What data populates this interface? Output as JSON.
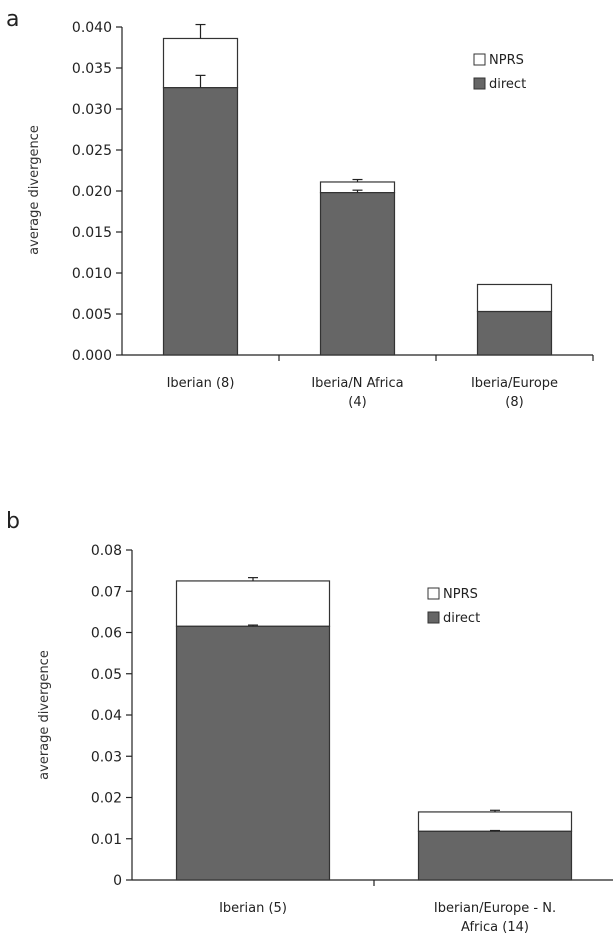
{
  "chart_data": [
    {
      "panel": "a",
      "type": "bar",
      "stacked": true,
      "ylabel": "average divergence",
      "ylim": [
        0,
        0.04
      ],
      "yticks": [
        "0.000",
        "0.005",
        "0.010",
        "0.015",
        "0.020",
        "0.025",
        "0.030",
        "0.035",
        "0.040"
      ],
      "categories": [
        [
          "Iberian (8)"
        ],
        [
          "Iberia/N Africa",
          "(4)"
        ],
        [
          "Iberia/Europe",
          "(8)"
        ]
      ],
      "series": [
        {
          "name": "direct",
          "color": "#666666",
          "values": [
            0.0326,
            0.0198,
            0.0053
          ],
          "error": [
            0.0015,
            0.0003,
            0
          ]
        },
        {
          "name": "NPRS",
          "color": "#ffffff",
          "values": [
            0.006,
            0.0013,
            0.0033
          ],
          "error": [
            0.0017,
            0.0003,
            0
          ]
        }
      ],
      "legend": {
        "position": "top-right",
        "entries": [
          "NPRS",
          "direct"
        ]
      }
    },
    {
      "panel": "b",
      "type": "bar",
      "stacked": true,
      "ylabel": "average divergence",
      "ylim": [
        0,
        0.08
      ],
      "yticks": [
        "0",
        "0.01",
        "0.02",
        "0.03",
        "0.04",
        "0.05",
        "0.06",
        "0.07",
        "0.08"
      ],
      "categories": [
        [
          "Iberian (5)"
        ],
        [
          "Iberian/Europe - N.",
          "Africa (14)"
        ]
      ],
      "series": [
        {
          "name": "direct",
          "color": "#666666",
          "values": [
            0.0615,
            0.0118
          ],
          "error": [
            0.0003,
            0.0002
          ]
        },
        {
          "name": "NPRS",
          "color": "#ffffff",
          "values": [
            0.011,
            0.0047
          ],
          "error": [
            0.0008,
            0.0004
          ]
        }
      ],
      "legend": {
        "position": "top-right",
        "entries": [
          "NPRS",
          "direct"
        ]
      }
    }
  ]
}
